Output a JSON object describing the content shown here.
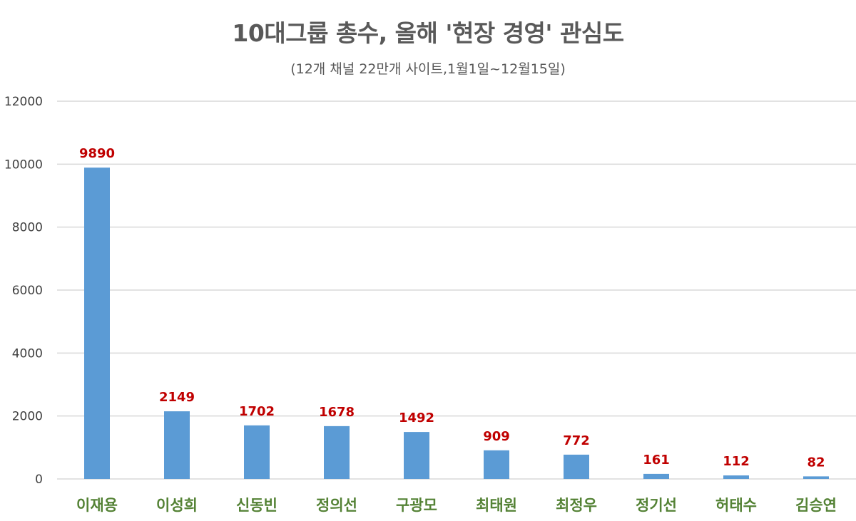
{
  "chart_data": {
    "type": "bar",
    "title": "10대그룹 총수, 올해 '현장 경영' 관심도",
    "subtitle": "(12개 채널 22만개 사이트,1월1일~12월15일)",
    "categories": [
      "이재용",
      "이성희",
      "신동빈",
      "정의선",
      "구광모",
      "최태원",
      "최정우",
      "정기선",
      "허태수",
      "김승연"
    ],
    "values": [
      9890,
      2149,
      1702,
      1678,
      1492,
      909,
      772,
      161,
      112,
      82
    ],
    "data_labels": [
      "9890",
      "2149",
      "1702",
      "1678",
      "1492",
      "909",
      "772",
      "161",
      "112",
      "82"
    ],
    "ylim": [
      0,
      12000
    ],
    "yticks": [
      0,
      2000,
      4000,
      6000,
      8000,
      10000,
      12000
    ],
    "ytick_labels": [
      "0",
      "2000",
      "4000",
      "6000",
      "8000",
      "10000",
      "12000"
    ],
    "xlabel": "",
    "ylabel": "",
    "grid": true,
    "legend": "none",
    "colors": {
      "bar": "#5b9bd5",
      "data_label": "#c00000",
      "category_label": "#548235",
      "gridline": "#d9d9d9",
      "axis_text": "#404040",
      "title": "#595959"
    }
  }
}
